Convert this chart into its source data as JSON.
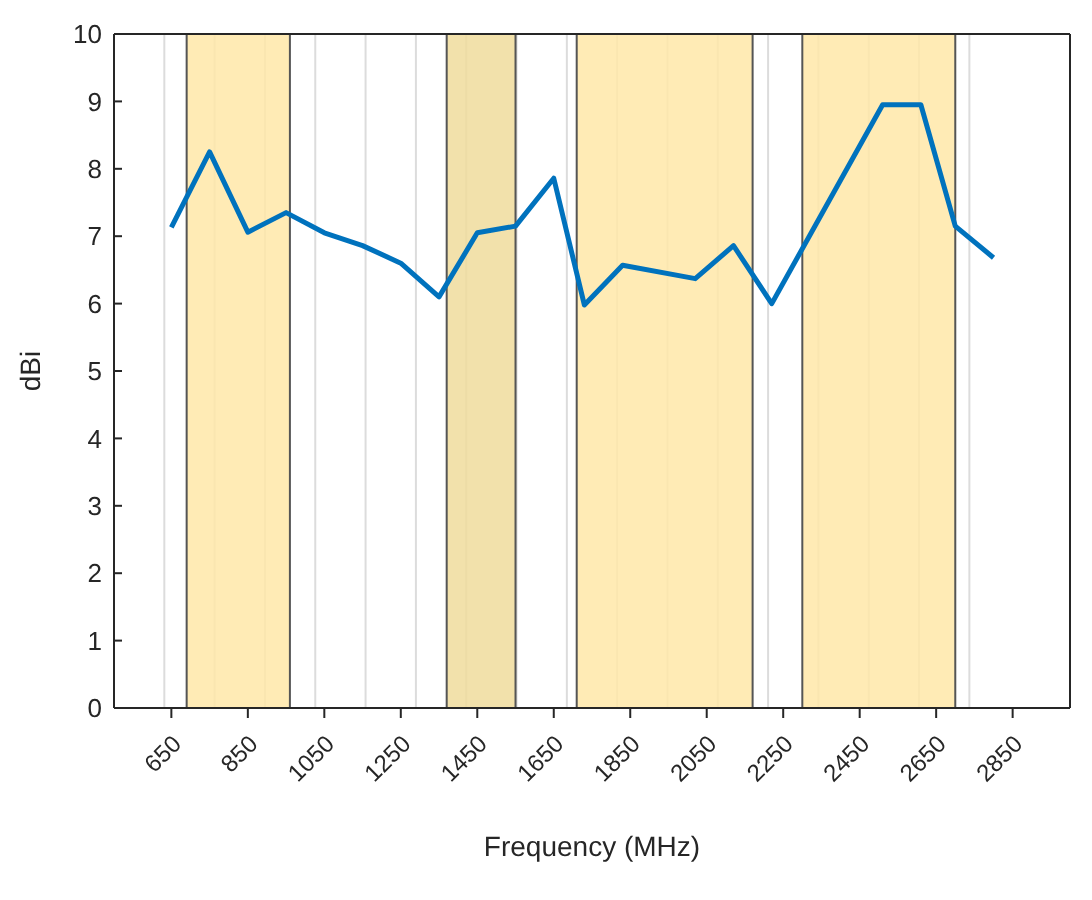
{
  "chart_data": {
    "type": "line",
    "xlabel": "Frequency (MHz)",
    "ylabel": "dBi",
    "x": [
      650,
      750,
      850,
      950,
      1050,
      1150,
      1250,
      1350,
      1450,
      1550,
      1650,
      1730,
      1830,
      2020,
      2120,
      2220,
      2510,
      2610,
      2700,
      2800
    ],
    "series": [
      {
        "color": "#0072bd",
        "values": [
          7.13,
          8.25,
          7.06,
          7.35,
          7.05,
          6.86,
          6.6,
          6.1,
          7.05,
          7.15,
          7.86,
          5.98,
          6.57,
          6.37,
          6.86,
          6.0,
          8.95,
          8.95,
          7.15,
          6.68
        ]
      }
    ],
    "xlim": [
      500,
      3000
    ],
    "xticks": [
      650,
      850,
      1050,
      1250,
      1450,
      1650,
      1850,
      2050,
      2250,
      2450,
      2650,
      2850
    ],
    "ylim": [
      0,
      10
    ],
    "yticks": [
      0,
      1,
      2,
      3,
      4,
      5,
      6,
      7,
      8,
      9,
      10
    ],
    "bands": [
      {
        "axis": "x",
        "from": 690,
        "to": 960,
        "label": null,
        "color": "#ffe7a8"
      },
      {
        "axis": "x",
        "from": 1370,
        "to": 1550,
        "label": null,
        "color": "#f0dc9c"
      },
      {
        "axis": "x",
        "from": 1710,
        "to": 2170,
        "label": null,
        "color": "#ffe7a8"
      },
      {
        "axis": "x",
        "from": 2300,
        "to": 2700,
        "label": null,
        "color": "#ffe7a8"
      }
    ],
    "grid": true,
    "legend": false,
    "marker": "none",
    "line_style": "solid"
  }
}
